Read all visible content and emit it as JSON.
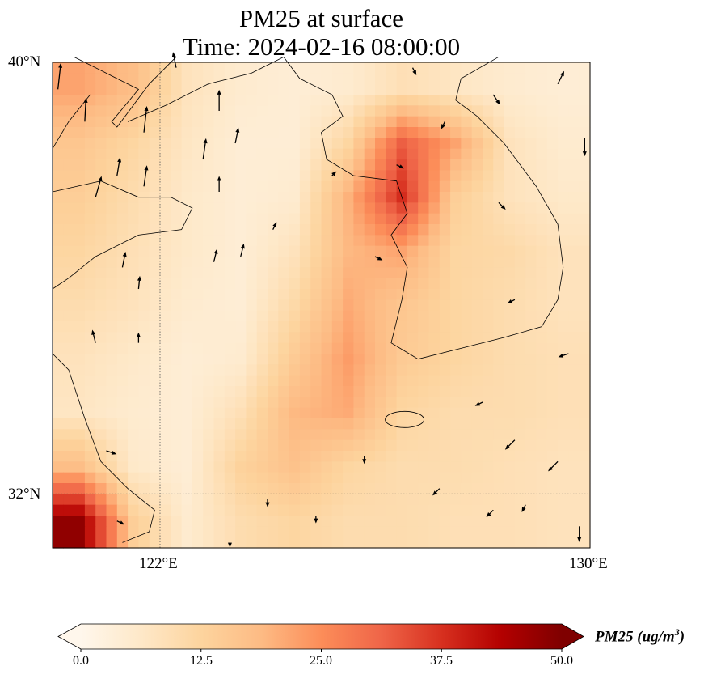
{
  "title": {
    "line1": "PM25 at surface",
    "line2": "Time: 2024-02-16 08:00:00"
  },
  "axes": {
    "lat_labels": [
      {
        "value": 40,
        "text": "40°N"
      },
      {
        "value": 32,
        "text": "32°N"
      }
    ],
    "lon_labels": [
      {
        "value": 122,
        "text": "122°E"
      },
      {
        "value": 130,
        "text": "130°E"
      }
    ],
    "lon_range": [
      120,
      130
    ],
    "lat_range": [
      31,
      40
    ]
  },
  "colorbar": {
    "label_main": "PM25 (ug/m",
    "label_sup": "3",
    "label_end": ")",
    "ticks": [
      "0.0",
      "12.5",
      "25.0",
      "37.5",
      "50.0"
    ],
    "range": [
      0,
      50
    ],
    "colors": [
      "#fff7ec",
      "#fee8c8",
      "#fdd49e",
      "#fdbb84",
      "#fc8d59",
      "#ef6548",
      "#d7301f",
      "#b30000",
      "#7f0000"
    ]
  },
  "chart_data": {
    "type": "heatmap",
    "title": "PM25 at surface / Time: 2024-02-16 08:00:00",
    "units": "ug/m3",
    "grid_lons": [
      120.5,
      121.5,
      122.5,
      123.5,
      124.5,
      125.5,
      126.5,
      127.5,
      128.5,
      129.5
    ],
    "grid_lats": [
      39.5,
      38.5,
      37.5,
      36.5,
      35.5,
      34.5,
      33.5,
      32.5,
      31.5
    ],
    "values": [
      [
        22,
        18,
        8,
        5,
        4,
        5,
        9,
        7,
        5,
        4
      ],
      [
        16,
        12,
        7,
        4,
        4,
        12,
        32,
        22,
        8,
        5
      ],
      [
        14,
        10,
        6,
        4,
        5,
        20,
        38,
        14,
        8,
        6
      ],
      [
        12,
        9,
        6,
        4,
        8,
        19,
        22,
        12,
        11,
        8
      ],
      [
        10,
        8,
        5,
        4,
        11,
        21,
        16,
        12,
        10,
        8
      ],
      [
        8,
        6,
        4,
        5,
        15,
        23,
        15,
        12,
        10,
        9
      ],
      [
        7,
        5,
        4,
        9,
        19,
        21,
        12,
        10,
        10,
        9
      ],
      [
        18,
        6,
        4,
        13,
        17,
        12,
        10,
        10,
        9,
        8
      ],
      [
        48,
        14,
        5,
        10,
        12,
        10,
        10,
        9,
        9,
        8
      ]
    ],
    "wind_vectors": [
      {
        "lon": 120.1,
        "lat": 39.5,
        "u": 0.05,
        "v": 0.45
      },
      {
        "lon": 120.6,
        "lat": 38.9,
        "u": 0.02,
        "v": 0.4
      },
      {
        "lon": 121.7,
        "lat": 38.7,
        "u": 0.05,
        "v": 0.45
      },
      {
        "lon": 120.8,
        "lat": 37.5,
        "u": 0.1,
        "v": 0.35
      },
      {
        "lon": 121.2,
        "lat": 37.9,
        "u": 0.05,
        "v": 0.3
      },
      {
        "lon": 121.7,
        "lat": 37.7,
        "u": 0.05,
        "v": 0.35
      },
      {
        "lon": 122.3,
        "lat": 39.9,
        "u": -0.05,
        "v": 0.25
      },
      {
        "lon": 123.1,
        "lat": 39.1,
        "u": 0,
        "v": 0.35
      },
      {
        "lon": 123.4,
        "lat": 38.5,
        "u": 0.05,
        "v": 0.25
      },
      {
        "lon": 122.8,
        "lat": 38.2,
        "u": 0.05,
        "v": 0.35
      },
      {
        "lon": 123.1,
        "lat": 37.6,
        "u": 0,
        "v": 0.25
      },
      {
        "lon": 121.3,
        "lat": 36.2,
        "u": 0.05,
        "v": 0.25
      },
      {
        "lon": 121.6,
        "lat": 35.8,
        "u": 0.02,
        "v": 0.2
      },
      {
        "lon": 120.8,
        "lat": 34.8,
        "u": -0.05,
        "v": 0.2
      },
      {
        "lon": 121.6,
        "lat": 34.8,
        "u": 0,
        "v": 0.15
      },
      {
        "lon": 123.0,
        "lat": 36.3,
        "u": 0.05,
        "v": 0.2
      },
      {
        "lon": 123.5,
        "lat": 36.4,
        "u": 0.05,
        "v": 0.2
      },
      {
        "lon": 126.7,
        "lat": 39.9,
        "u": 0.05,
        "v": -0.1
      },
      {
        "lon": 129.4,
        "lat": 39.6,
        "u": 0.1,
        "v": 0.2
      },
      {
        "lon": 128.2,
        "lat": 39.4,
        "u": 0.1,
        "v": -0.15
      },
      {
        "lon": 129.9,
        "lat": 38.6,
        "u": 0,
        "v": -0.3
      },
      {
        "lon": 126.4,
        "lat": 38.1,
        "u": 0.1,
        "v": -0.05
      },
      {
        "lon": 127.3,
        "lat": 38.9,
        "u": -0.05,
        "v": -0.1
      },
      {
        "lon": 128.3,
        "lat": 37.4,
        "u": 0.1,
        "v": -0.1
      },
      {
        "lon": 128.6,
        "lat": 35.6,
        "u": -0.1,
        "v": -0.05
      },
      {
        "lon": 129.6,
        "lat": 34.6,
        "u": -0.15,
        "v": -0.05
      },
      {
        "lon": 128.0,
        "lat": 33.7,
        "u": -0.1,
        "v": -0.05
      },
      {
        "lon": 128.6,
        "lat": 33.0,
        "u": -0.15,
        "v": -0.15
      },
      {
        "lon": 129.4,
        "lat": 32.6,
        "u": -0.15,
        "v": -0.15
      },
      {
        "lon": 127.2,
        "lat": 32.1,
        "u": -0.1,
        "v": -0.1
      },
      {
        "lon": 128.2,
        "lat": 31.7,
        "u": -0.1,
        "v": -0.1
      },
      {
        "lon": 128.8,
        "lat": 31.8,
        "u": -0.05,
        "v": -0.1
      },
      {
        "lon": 129.8,
        "lat": 31.4,
        "u": 0,
        "v": -0.25
      },
      {
        "lon": 125.8,
        "lat": 32.7,
        "u": 0,
        "v": -0.1
      },
      {
        "lon": 124.0,
        "lat": 31.9,
        "u": 0,
        "v": -0.1
      },
      {
        "lon": 124.9,
        "lat": 31.6,
        "u": 0,
        "v": -0.1
      },
      {
        "lon": 123.3,
        "lat": 31.1,
        "u": 0,
        "v": -0.05
      },
      {
        "lon": 121.0,
        "lat": 32.8,
        "u": 0.15,
        "v": -0.05
      },
      {
        "lon": 121.2,
        "lat": 31.5,
        "u": 0.1,
        "v": -0.05
      },
      {
        "lon": 126.0,
        "lat": 36.4,
        "u": 0.1,
        "v": -0.05
      },
      {
        "lon": 125.2,
        "lat": 37.9,
        "u": 0.05,
        "v": 0.05
      },
      {
        "lon": 124.1,
        "lat": 36.9,
        "u": 0.05,
        "v": 0.1
      }
    ]
  }
}
